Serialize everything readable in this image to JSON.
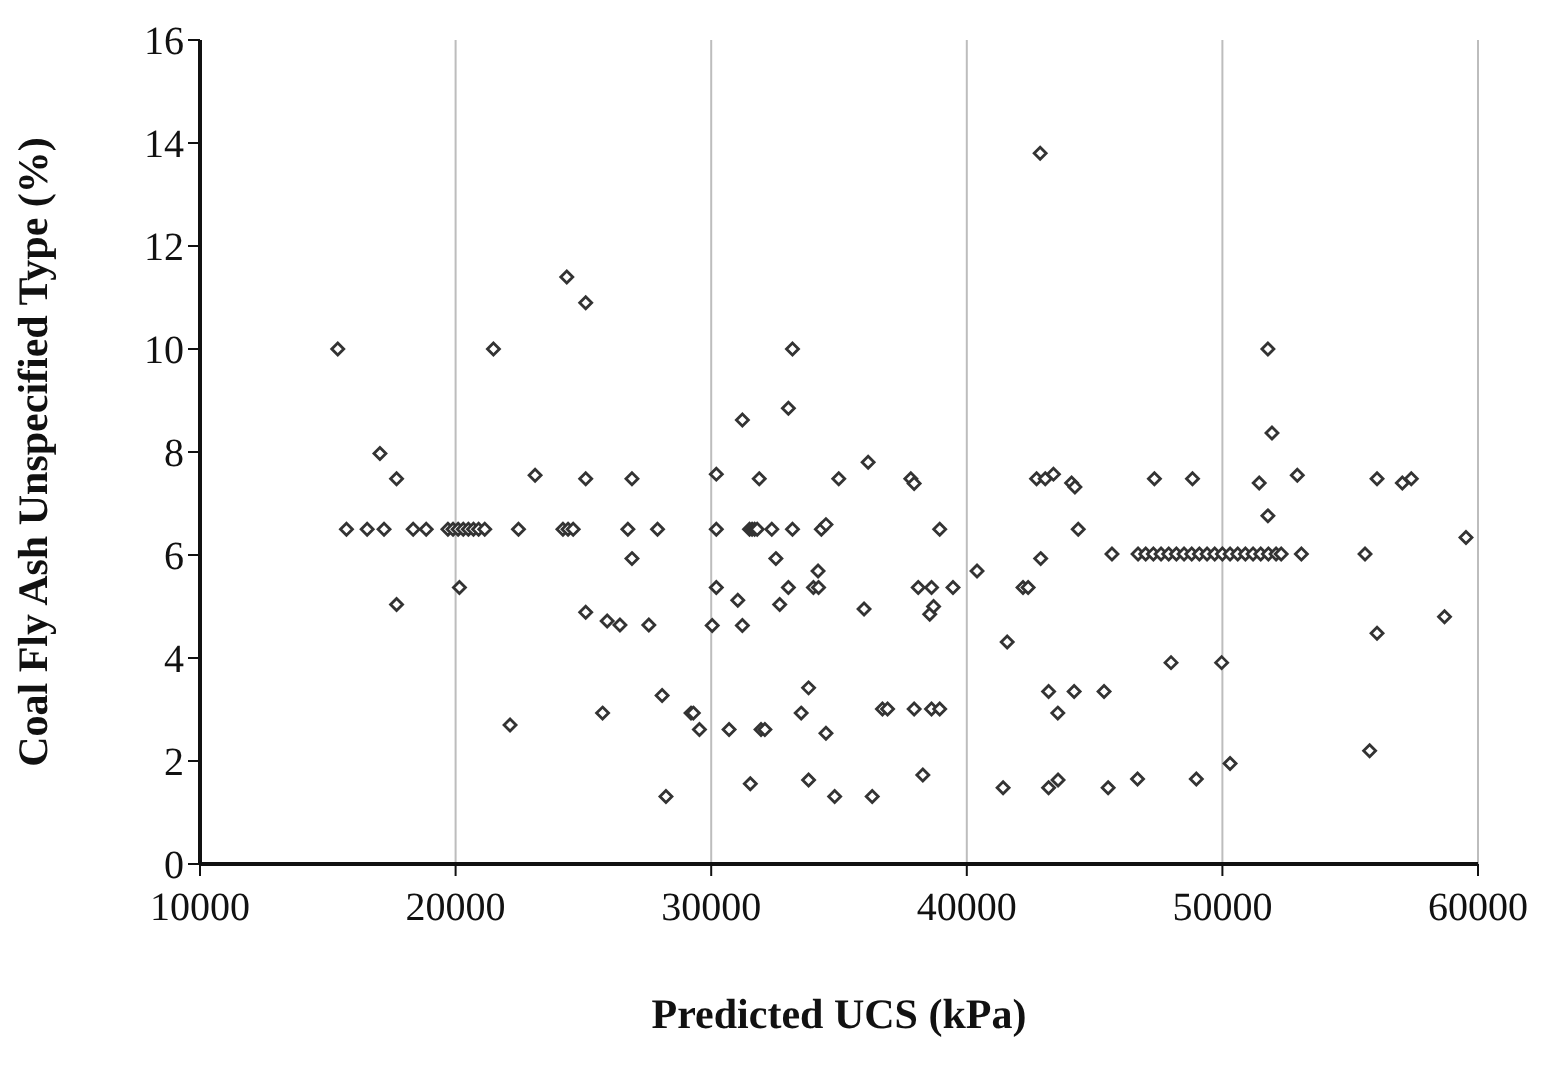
{
  "chart_data": {
    "type": "scatter",
    "xlabel": "Predicted UCS (kPa)",
    "ylabel": "Coal Fly Ash Unspecified Type (%)",
    "xlim": [
      10000,
      60000
    ],
    "xticks": [
      10000,
      20000,
      30000,
      40000,
      50000,
      60000
    ],
    "ylim": [
      0,
      16
    ],
    "yticks": [
      0,
      2,
      4,
      6,
      8,
      10,
      12,
      14,
      16
    ],
    "grid": "x",
    "marker": "diamond",
    "legend": false,
    "series": [
      {
        "color": "#333333",
        "x": [
          15390,
          21480,
          25090,
          24350,
          42870,
          17040,
          17690,
          23110,
          25090,
          26900,
          15730,
          16540,
          17200,
          18340,
          18850,
          19700,
          19900,
          20100,
          20300,
          20500,
          20700,
          20900,
          21140,
          22460,
          24200,
          24400,
          24600,
          26740,
          27900,
          26900,
          20150,
          17690,
          25090,
          25930,
          26430,
          27560,
          28080,
          25750,
          22130,
          28230,
          33180,
          33020,
          31220,
          30200,
          31880,
          34990,
          36140,
          37810,
          37940,
          42730,
          43070,
          43390,
          30200,
          31500,
          31600,
          31700,
          31800,
          32370,
          33180,
          34310,
          34490,
          38940,
          32530,
          34180,
          40400,
          42890,
          30200,
          33020,
          34000,
          34200,
          38100,
          38620,
          39460,
          42200,
          42400,
          31040,
          32680,
          35980,
          38550,
          38700,
          30040,
          31220,
          41580,
          33810,
          43200,
          29210,
          29300,
          33520,
          36700,
          36900,
          37940,
          38620,
          38940,
          43560,
          29540,
          30700,
          31950,
          32100,
          34490,
          31530,
          33810,
          34830,
          36300,
          38280,
          41420,
          43200,
          43570,
          51780,
          51940,
          44100,
          44230,
          47340,
          48830,
          51440,
          52930,
          56050,
          57040,
          57390,
          44360,
          51780,
          59530,
          45680,
          46700,
          47000,
          47300,
          47600,
          47900,
          48200,
          48500,
          48800,
          49100,
          49400,
          49700,
          50000,
          50300,
          50600,
          50900,
          51200,
          51500,
          51800,
          52100,
          52300,
          53090,
          55580,
          58690,
          56050,
          47990,
          49970,
          44200,
          45370,
          55760,
          50300,
          45530,
          46680,
          48980
        ],
        "values": [
          10.0,
          10.0,
          10.9,
          11.4,
          13.8,
          7.97,
          7.48,
          7.55,
          7.48,
          7.48,
          6.5,
          6.5,
          6.5,
          6.5,
          6.5,
          6.5,
          6.5,
          6.5,
          6.5,
          6.5,
          6.5,
          6.5,
          6.5,
          6.5,
          6.5,
          6.5,
          6.5,
          6.5,
          6.5,
          5.93,
          5.37,
          5.04,
          4.89,
          4.72,
          4.64,
          4.64,
          3.27,
          2.93,
          2.7,
          1.31,
          10.0,
          8.85,
          8.62,
          7.57,
          7.48,
          7.48,
          7.8,
          7.48,
          7.39,
          7.48,
          7.48,
          7.57,
          6.5,
          6.5,
          6.5,
          6.5,
          6.5,
          6.5,
          6.5,
          6.5,
          6.59,
          6.5,
          5.93,
          5.69,
          5.69,
          5.93,
          5.37,
          5.37,
          5.37,
          5.37,
          5.37,
          5.37,
          5.37,
          5.37,
          5.37,
          5.12,
          5.04,
          4.95,
          4.85,
          5.0,
          4.63,
          4.63,
          4.31,
          3.42,
          3.35,
          2.93,
          2.93,
          2.93,
          3.01,
          3.01,
          3.01,
          3.01,
          3.01,
          2.93,
          2.61,
          2.61,
          2.61,
          2.61,
          2.54,
          1.56,
          1.63,
          1.31,
          1.31,
          1.73,
          1.48,
          1.48,
          1.63,
          10.0,
          8.37,
          7.4,
          7.32,
          7.48,
          7.48,
          7.4,
          7.55,
          7.48,
          7.4,
          7.48,
          6.5,
          6.76,
          6.34,
          6.02,
          6.02,
          6.02,
          6.02,
          6.02,
          6.02,
          6.02,
          6.02,
          6.02,
          6.02,
          6.02,
          6.02,
          6.02,
          6.02,
          6.02,
          6.02,
          6.02,
          6.02,
          6.02,
          6.02,
          6.02,
          6.02,
          6.02,
          4.8,
          4.48,
          3.91,
          3.91,
          3.35,
          3.35,
          2.2,
          1.95,
          1.48,
          1.65,
          1.65
        ]
      }
    ]
  }
}
